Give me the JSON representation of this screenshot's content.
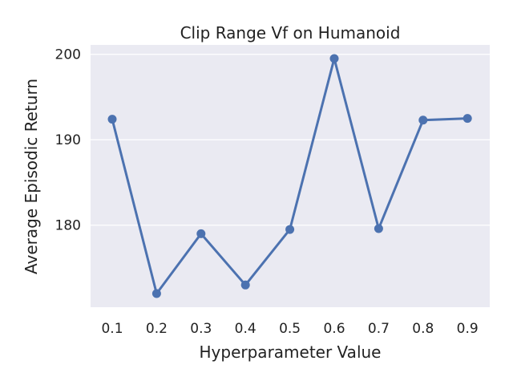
{
  "chart_data": {
    "type": "line",
    "title": "Clip Range Vf on Humanoid",
    "xlabel": "Hyperparameter Value",
    "ylabel": "Average Episodic Return",
    "categories": [
      "0.1",
      "0.2",
      "0.3",
      "0.4",
      "0.5",
      "0.6",
      "0.7",
      "0.8",
      "0.9"
    ],
    "series": [
      {
        "values": [
          192.4,
          172.0,
          179.0,
          173.0,
          179.5,
          199.5,
          179.6,
          192.3,
          192.5
        ]
      }
    ],
    "yticks": [
      "180",
      "190",
      "200"
    ],
    "ylim": [
      170.4,
      201.1
    ],
    "grid": true,
    "line_color": "#4c72b0",
    "background_color": "#eaeaf2"
  }
}
